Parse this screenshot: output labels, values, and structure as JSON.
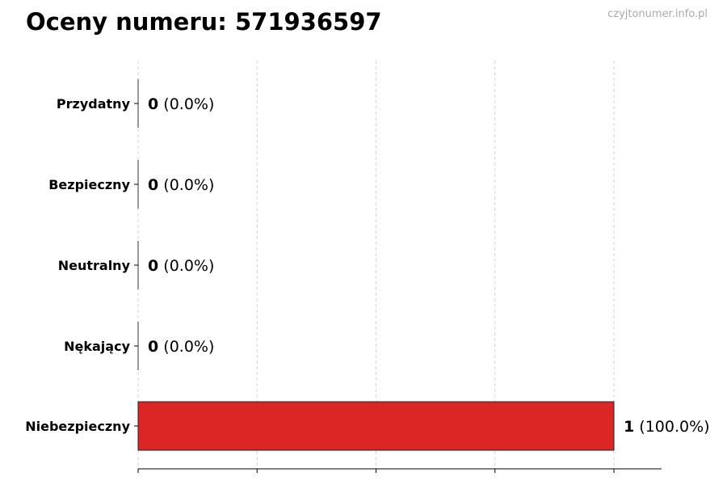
{
  "title": "Oceny numeru: 571936597",
  "watermark": "czyjtonumer.info.pl",
  "chart_data": {
    "type": "bar",
    "orientation": "horizontal",
    "title": "Oceny numeru: 571936597",
    "categories": [
      "Przydatny",
      "Bezpieczny",
      "Neutralny",
      "Nękający",
      "Niebezpieczny"
    ],
    "values": [
      0,
      0,
      0,
      0,
      1
    ],
    "labels": [
      "(0.0%)",
      "(0.0%)",
      "(0.0%)",
      "(0.0%)",
      "(100.0%)"
    ],
    "bar_color": "#dc2626",
    "xlim": [
      0,
      1.1
    ],
    "xticks": [
      0,
      0.25,
      0.5,
      0.75,
      1.0
    ],
    "xtick_labels_shown": false,
    "grid": "vertical dashed",
    "xlabel": "",
    "ylabel": ""
  }
}
